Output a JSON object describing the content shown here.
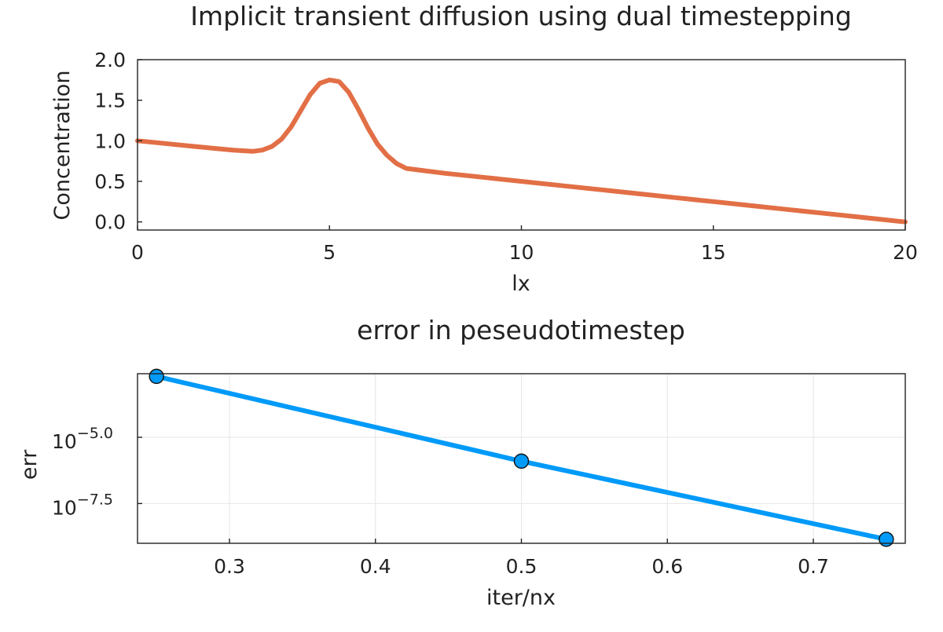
{
  "chart_data": [
    {
      "type": "line",
      "title": "Implicit transient diffusion using dual timestepping",
      "xlabel": "lx",
      "ylabel": "Concentration",
      "xlim": [
        0,
        20
      ],
      "ylim": [
        -0.1,
        2.0
      ],
      "xticks": [
        0,
        5,
        10,
        15,
        20
      ],
      "xtick_labels": [
        "0",
        "5",
        "10",
        "15",
        "20"
      ],
      "yticks": [
        0.0,
        0.5,
        1.0,
        1.5,
        2.0
      ],
      "ytick_labels": [
        "0.0",
        "0.5",
        "1.0",
        "1.5",
        "2.0"
      ],
      "grid": false,
      "legend": "none",
      "series": [
        {
          "color": "#e26f46",
          "x": [
            0,
            0.5,
            1,
            1.5,
            2,
            2.5,
            3,
            3.25,
            3.5,
            3.75,
            4,
            4.25,
            4.5,
            4.75,
            5,
            5.25,
            5.5,
            5.75,
            6,
            6.25,
            6.5,
            6.75,
            7,
            7.5,
            8,
            9,
            10,
            11,
            12,
            13,
            14,
            15,
            16,
            17,
            18,
            19,
            20
          ],
          "y": [
            1.0,
            0.977,
            0.953,
            0.93,
            0.906,
            0.885,
            0.87,
            0.885,
            0.93,
            1.02,
            1.17,
            1.37,
            1.57,
            1.71,
            1.75,
            1.73,
            1.6,
            1.39,
            1.16,
            0.96,
            0.82,
            0.72,
            0.66,
            0.63,
            0.6,
            0.55,
            0.5,
            0.45,
            0.4,
            0.35,
            0.3,
            0.25,
            0.2,
            0.15,
            0.1,
            0.05,
            0.0
          ]
        }
      ]
    },
    {
      "type": "line",
      "title": "error in peseudotimestep",
      "xlabel": "iter/nx",
      "ylabel": "err",
      "yscale": "log10",
      "xlim": [
        0.237,
        0.763
      ],
      "ylim": [
        -9.0,
        -2.6
      ],
      "xticks": [
        0.3,
        0.4,
        0.5,
        0.6,
        0.7
      ],
      "xtick_labels": [
        "0.3",
        "0.4",
        "0.5",
        "0.6",
        "0.7"
      ],
      "yticks": [
        -5.0,
        -7.5
      ],
      "ytick_base": "10",
      "ytick_exponents": [
        "−5.0",
        "−7.5"
      ],
      "grid": true,
      "legend": "none",
      "markers": true,
      "series": [
        {
          "color": "#009af9",
          "x": [
            0.25,
            0.5,
            0.75
          ],
          "log10_y": [
            -2.7,
            -5.9,
            -8.85
          ]
        }
      ]
    }
  ]
}
